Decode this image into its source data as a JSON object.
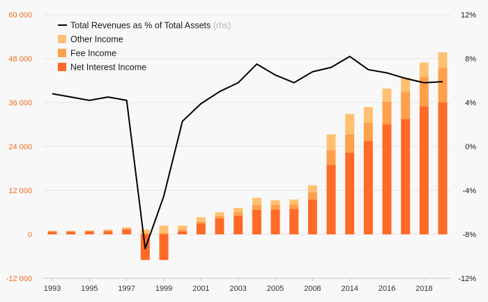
{
  "chart_data": {
    "type": "bar",
    "stacked": true,
    "title": "",
    "xlabel": "",
    "ylabel": "",
    "x": [
      1993,
      1994,
      1995,
      1996,
      1997,
      1998,
      1999,
      2000,
      2001,
      2002,
      2003,
      2004,
      2005,
      2007,
      2008,
      2010,
      2014,
      2015,
      2016,
      2017,
      2018,
      2019
    ],
    "x_tick_labels": [
      "1993",
      "1995",
      "1997",
      "1999",
      "2001",
      "2003",
      "2005",
      "2008",
      "2014",
      "2016",
      "2018"
    ],
    "ylim_left": [
      -12000,
      60000
    ],
    "y_ticks_left": [
      "-12 000",
      "0",
      "12 000",
      "24 000",
      "36 000",
      "48 000",
      "60 000"
    ],
    "ylim_right": [
      -12,
      12
    ],
    "y_ticks_right": [
      "-12%",
      "-8%",
      "-4%",
      "0%",
      "4%",
      "8%",
      "12%"
    ],
    "series": [
      {
        "name": "Net Interest Income",
        "color": "#ff6a26",
        "axis": "left",
        "values": [
          700,
          700,
          800,
          900,
          1300,
          -7000,
          -7000,
          800,
          3000,
          4400,
          5100,
          6700,
          6800,
          7000,
          9500,
          19000,
          22300,
          25500,
          30000,
          31500,
          35000,
          36000
        ]
      },
      {
        "name": "Fee Income",
        "color": "#ffa04a",
        "axis": "left",
        "values": [
          200,
          200,
          200,
          200,
          300,
          300,
          400,
          600,
          500,
          600,
          900,
          1300,
          1200,
          1100,
          2000,
          4000,
          5000,
          5000,
          6200,
          7500,
          8000,
          9500
        ]
      },
      {
        "name": "Other Income",
        "color": "#ffc071",
        "axis": "left",
        "values": [
          100,
          100,
          100,
          200,
          300,
          1000,
          2000,
          1000,
          1200,
          1000,
          1200,
          2000,
          1300,
          1400,
          1900,
          4300,
          5600,
          4300,
          3600,
          3800,
          3900,
          4200
        ]
      },
      {
        "name": "Total Revenues as % of Total Assets",
        "name_suffix": "(rhs)",
        "color": "#000000",
        "axis": "right",
        "type": "line",
        "values": [
          4.8,
          4.5,
          4.2,
          4.5,
          4.2,
          -9.3,
          -4.5,
          2.3,
          3.9,
          5.0,
          5.8,
          7.5,
          6.5,
          5.8,
          6.8,
          7.2,
          8.2,
          7.0,
          6.7,
          6.2,
          5.8,
          5.9
        ]
      }
    ],
    "legend_position": "top-left",
    "grid": true
  }
}
